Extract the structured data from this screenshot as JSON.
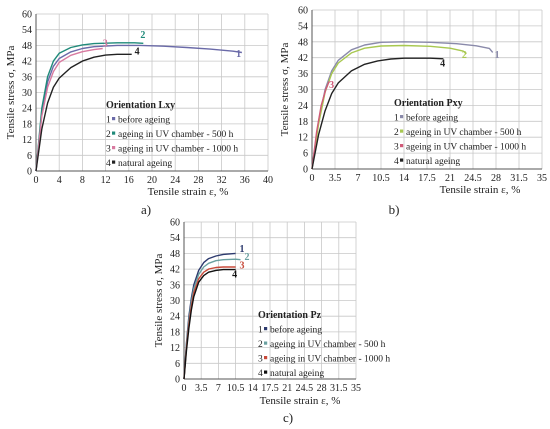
{
  "chart_data": [
    {
      "type": "line",
      "panel_label": "a)",
      "title": "Orientation Lxy",
      "xlabel": "Tensile strain ε, %",
      "ylabel": "Tensile stress σ, MPa",
      "xlim": [
        0,
        40
      ],
      "ylim": [
        0,
        60
      ],
      "x_ticks": [
        "0",
        "4",
        "8",
        "12",
        "16",
        "20",
        "24",
        "28",
        "32",
        "36",
        "40"
      ],
      "x_tick_values": [
        0,
        4,
        8,
        12,
        16,
        20,
        24,
        28,
        32,
        36,
        40
      ],
      "y_ticks": [
        "0",
        "6",
        "12",
        "18",
        "24",
        "30",
        "36",
        "42",
        "48",
        "54",
        "60"
      ],
      "y_tick_values": [
        0,
        6,
        12,
        18,
        24,
        30,
        36,
        42,
        48,
        54,
        60
      ],
      "legend": [
        {
          "num": "1",
          "text": "before ageing"
        },
        {
          "num": "2",
          "text": "ageing in UV chamber - 500 h"
        },
        {
          "num": "3",
          "text": "ageing in UV chamber - 1000 h"
        },
        {
          "num": "4",
          "text": "natural ageing"
        }
      ],
      "series": [
        {
          "name": "1",
          "color": "#6a6aa8",
          "points": [
            [
              0,
              0
            ],
            [
              1,
              22
            ],
            [
              2,
              34
            ],
            [
              3,
              40
            ],
            [
              4,
              43
            ],
            [
              6,
              45.5
            ],
            [
              8,
              46.8
            ],
            [
              10,
              47.5
            ],
            [
              14,
              48
            ],
            [
              18,
              48
            ],
            [
              22,
              47.7
            ],
            [
              26,
              47.2
            ],
            [
              30,
              46.6
            ],
            [
              34,
              45.8
            ],
            [
              35.5,
              45.3
            ]
          ]
        },
        {
          "name": "2",
          "color": "#1f8a7a",
          "points": [
            [
              0,
              0
            ],
            [
              1,
              24
            ],
            [
              2,
              36
            ],
            [
              3,
              42
            ],
            [
              4,
              45
            ],
            [
              6,
              47.2
            ],
            [
              8,
              48.2
            ],
            [
              10,
              48.7
            ],
            [
              14,
              49
            ],
            [
              17,
              49
            ],
            [
              18.5,
              48.8
            ]
          ]
        },
        {
          "name": "3",
          "color": "#d87aa0",
          "points": [
            [
              0,
              0
            ],
            [
              1,
              21
            ],
            [
              2,
              32
            ],
            [
              3,
              38
            ],
            [
              4,
              41.5
            ],
            [
              6,
              44.2
            ],
            [
              8,
              45.6
            ],
            [
              10,
              46.4
            ],
            [
              11.5,
              46.8
            ]
          ]
        },
        {
          "name": "4",
          "color": "#222222",
          "points": [
            [
              0,
              0
            ],
            [
              1,
              16
            ],
            [
              2,
              26
            ],
            [
              3,
              32
            ],
            [
              4,
              35.5
            ],
            [
              6,
              39.5
            ],
            [
              8,
              42
            ],
            [
              10,
              43.5
            ],
            [
              12,
              44.3
            ],
            [
              14,
              44.6
            ],
            [
              16.5,
              44.6
            ]
          ]
        }
      ],
      "curve_labels": [
        {
          "text": "1",
          "x": 34.5,
          "y": 43.5
        },
        {
          "text": "2",
          "x": 18,
          "y": 50.8
        },
        {
          "text": "3",
          "x": 11.5,
          "y": 47.5
        },
        {
          "text": "4",
          "x": 17,
          "y": 44.5
        }
      ]
    },
    {
      "type": "line",
      "panel_label": "b)",
      "title": "Orientation Pxy",
      "xlabel": "Tensile strain ε, %",
      "ylabel": "Tensile stress σ, MPa",
      "xlim": [
        0,
        35
      ],
      "ylim": [
        0,
        60
      ],
      "x_ticks": [
        "0",
        "3.5",
        "7",
        "10.5",
        "14",
        "17.5",
        "21",
        "24.5",
        "28",
        "31.5",
        "35"
      ],
      "x_tick_values": [
        0,
        3.5,
        7,
        10.5,
        14,
        17.5,
        21,
        24.5,
        28,
        31.5,
        35
      ],
      "y_ticks": [
        "0",
        "6",
        "12",
        "18",
        "24",
        "30",
        "36",
        "42",
        "48",
        "54",
        "60"
      ],
      "y_tick_values": [
        0,
        6,
        12,
        18,
        24,
        30,
        36,
        42,
        48,
        54,
        60
      ],
      "legend": [
        {
          "num": "1",
          "text": "before ageing"
        },
        {
          "num": "2",
          "text": "ageing in UV chamber - 500 h"
        },
        {
          "num": "3",
          "text": "ageing in UV chamber - 1000 h"
        },
        {
          "num": "4",
          "text": "natural ageing"
        }
      ],
      "series": [
        {
          "name": "1",
          "color": "#8a8aaa",
          "points": [
            [
              0,
              0
            ],
            [
              1,
              18
            ],
            [
              2,
              30
            ],
            [
              3,
              37
            ],
            [
              4,
              41
            ],
            [
              6,
              45
            ],
            [
              8,
              46.8
            ],
            [
              10.5,
              47.8
            ],
            [
              14,
              48
            ],
            [
              18,
              47.8
            ],
            [
              22,
              47.3
            ],
            [
              25,
              46.5
            ],
            [
              27,
              45.5
            ],
            [
              27.5,
              44
            ]
          ]
        },
        {
          "name": "2",
          "color": "#a8c850",
          "points": [
            [
              0,
              0
            ],
            [
              1,
              17
            ],
            [
              2,
              29
            ],
            [
              3,
              36
            ],
            [
              4,
              40
            ],
            [
              6,
              43.8
            ],
            [
              8,
              45.6
            ],
            [
              10.5,
              46.4
            ],
            [
              14,
              46.6
            ],
            [
              18,
              46.3
            ],
            [
              21,
              45.6
            ],
            [
              23,
              44.5
            ],
            [
              23.5,
              43.5
            ]
          ]
        },
        {
          "name": "3",
          "color": "#d05a78",
          "points": [
            [
              0,
              0
            ],
            [
              0.7,
              14
            ],
            [
              1.4,
              24
            ],
            [
              2.1,
              30
            ],
            [
              2.6,
              33
            ]
          ]
        },
        {
          "name": "4",
          "color": "#222222",
          "points": [
            [
              0,
              0
            ],
            [
              1,
              13
            ],
            [
              2,
              22
            ],
            [
              3,
              28.5
            ],
            [
              4,
              32.5
            ],
            [
              6,
              37
            ],
            [
              8,
              39.5
            ],
            [
              10,
              40.8
            ],
            [
              12,
              41.5
            ],
            [
              14,
              41.8
            ],
            [
              18,
              41.8
            ],
            [
              20,
              41.6
            ]
          ]
        }
      ],
      "curve_labels": [
        {
          "text": "1",
          "x": 27.8,
          "y": 41.8
        },
        {
          "text": "2",
          "x": 22.8,
          "y": 41.8
        },
        {
          "text": "3",
          "x": 2.6,
          "y": 30.5
        },
        {
          "text": "4",
          "x": 19.5,
          "y": 38.7
        }
      ]
    },
    {
      "type": "line",
      "panel_label": "c)",
      "title": "Orientation Pz",
      "xlabel": "Tensile strain ε, %",
      "ylabel": "Tensile stress σ, MPa",
      "xlim": [
        0,
        35
      ],
      "ylim": [
        0,
        60
      ],
      "x_ticks": [
        "0",
        "3.5",
        "7",
        "10.5",
        "14",
        "17.5",
        "21",
        "24.5",
        "28",
        "31.5",
        "35"
      ],
      "x_tick_values": [
        0,
        3.5,
        7,
        10.5,
        14,
        17.5,
        21,
        24.5,
        28,
        31.5,
        35
      ],
      "y_ticks": [
        "0",
        "6",
        "12",
        "18",
        "24",
        "30",
        "36",
        "42",
        "48",
        "54",
        "60"
      ],
      "y_tick_values": [
        0,
        6,
        12,
        18,
        24,
        30,
        36,
        42,
        48,
        54,
        60
      ],
      "legend": [
        {
          "num": "1",
          "text": "before ageing"
        },
        {
          "num": "2",
          "text": "ageing in UV chamber - 500 h"
        },
        {
          "num": "3",
          "text": "ageing in UV chamber - 1000 h"
        },
        {
          "num": "4",
          "text": "natural ageing"
        }
      ],
      "series": [
        {
          "name": "1",
          "color": "#2d3a6e",
          "points": [
            [
              0,
              0
            ],
            [
              0.5,
              14
            ],
            [
              1,
              24
            ],
            [
              1.5,
              31
            ],
            [
              2,
              36
            ],
            [
              3,
              41.5
            ],
            [
              4,
              44.5
            ],
            [
              5,
              46
            ],
            [
              6.5,
              47
            ],
            [
              8,
              47.6
            ],
            [
              10.5,
              48
            ]
          ]
        },
        {
          "name": "2",
          "color": "#6aa0a0",
          "points": [
            [
              0,
              0
            ],
            [
              0.5,
              13
            ],
            [
              1,
              22.5
            ],
            [
              1.5,
              29.5
            ],
            [
              2,
              34.5
            ],
            [
              3,
              40
            ],
            [
              4,
              42.8
            ],
            [
              5,
              44.2
            ],
            [
              6.5,
              45.2
            ],
            [
              8,
              45.6
            ],
            [
              10.5,
              45.8
            ],
            [
              11.5,
              45.6
            ]
          ]
        },
        {
          "name": "3",
          "color": "#c84a3a",
          "points": [
            [
              0,
              0
            ],
            [
              0.5,
              12
            ],
            [
              1,
              21
            ],
            [
              1.5,
              28
            ],
            [
              2,
              33
            ],
            [
              3,
              38.3
            ],
            [
              4,
              40.8
            ],
            [
              5,
              42
            ],
            [
              6.5,
              42.6
            ],
            [
              8,
              42.8
            ],
            [
              10.5,
              42.8
            ]
          ]
        },
        {
          "name": "4",
          "color": "#111111",
          "points": [
            [
              0,
              0
            ],
            [
              0.5,
              11
            ],
            [
              1,
              19.5
            ],
            [
              1.5,
              26.5
            ],
            [
              2,
              31.5
            ],
            [
              3,
              37
            ],
            [
              4,
              39.5
            ],
            [
              5,
              40.8
            ],
            [
              6.5,
              41.5
            ],
            [
              8,
              41.8
            ],
            [
              10.5,
              41.8
            ]
          ]
        }
      ],
      "curve_labels": [
        {
          "text": "1",
          "x": 11.3,
          "y": 48.5
        },
        {
          "text": "2",
          "x": 12.3,
          "y": 45.5
        },
        {
          "text": "3",
          "x": 11.3,
          "y": 42.3
        },
        {
          "text": "4",
          "x": 9.8,
          "y": 38.8
        }
      ]
    }
  ]
}
